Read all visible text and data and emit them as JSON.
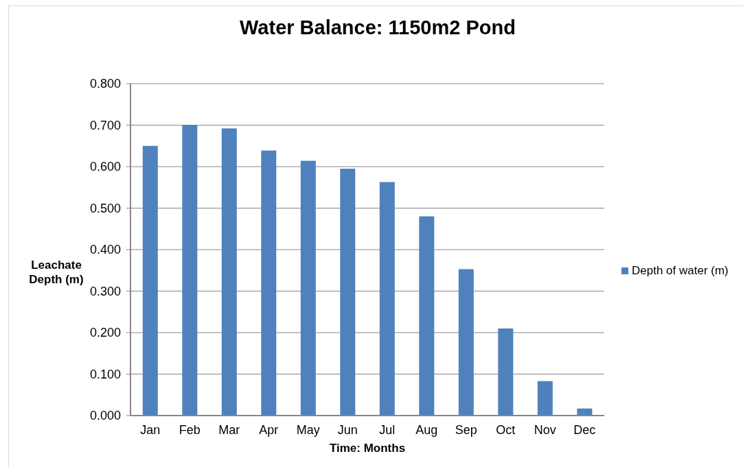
{
  "chart_data": {
    "type": "bar",
    "title": "Water Balance: 1150m2 Pond",
    "xlabel": "Time: Months",
    "ylabel": "Leachate Depth (m)",
    "categories": [
      "Jan",
      "Feb",
      "Mar",
      "Apr",
      "May",
      "Jun",
      "Jul",
      "Aug",
      "Sep",
      "Oct",
      "Nov",
      "Dec"
    ],
    "series": [
      {
        "name": "Depth of water (m)",
        "color": "#4f81bd",
        "values": [
          0.65,
          0.701,
          0.692,
          0.639,
          0.614,
          0.595,
          0.563,
          0.48,
          0.353,
          0.21,
          0.083,
          0.017
        ]
      }
    ],
    "ylim": [
      0,
      0.8
    ],
    "yticks": [
      {
        "value": 0,
        "label": "0.000"
      },
      {
        "value": 0.1,
        "label": "0.100"
      },
      {
        "value": 0.2,
        "label": "0.200"
      },
      {
        "value": 0.3,
        "label": "0.300"
      },
      {
        "value": 0.4,
        "label": "0.400"
      },
      {
        "value": 0.5,
        "label": "0.500"
      },
      {
        "value": 0.6,
        "label": "0.600"
      },
      {
        "value": 0.7,
        "label": "0.700"
      },
      {
        "value": 0.8,
        "label": "0.800"
      }
    ],
    "grid": "y",
    "legend": "right"
  }
}
